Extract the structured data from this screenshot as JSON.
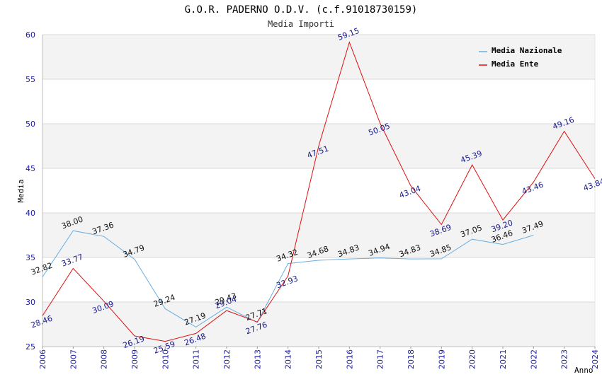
{
  "chart_data": {
    "type": "line",
    "title": "G.O.R. PADERNO O.D.V. (c.f.91018730159)",
    "subtitle": "Media Importi",
    "xlabel": "Anno",
    "ylabel": "Media",
    "ylim": [
      25,
      60
    ],
    "yticks": [
      "25",
      "30",
      "35",
      "40",
      "45",
      "50",
      "55",
      "60"
    ],
    "categories": [
      "2006",
      "2007",
      "2008",
      "2009",
      "2010",
      "2011",
      "2012",
      "2013",
      "2014",
      "2015",
      "2016",
      "2017",
      "2018",
      "2019",
      "2020",
      "2021",
      "2022",
      "2023",
      "2024"
    ],
    "legend_position": "top-right",
    "series": [
      {
        "name": "Media Nazionale",
        "color": "#6aaee0",
        "values": [
          32.82,
          38.0,
          37.36,
          34.79,
          29.24,
          27.19,
          29.43,
          27.71,
          34.32,
          34.68,
          34.83,
          34.94,
          34.83,
          34.85,
          37.05,
          36.46,
          37.49,
          null,
          null
        ],
        "labels": [
          "32.82",
          "38.00",
          "37.36",
          "34.79",
          "29.24",
          "27.19",
          "29.43",
          "27.71",
          "34.32",
          "34.68",
          "34.83",
          "34.94",
          "34.83",
          "34.85",
          "37.05",
          "36.46",
          "37.49",
          null,
          null
        ]
      },
      {
        "name": "Media Ente",
        "color": "#e01010",
        "values": [
          28.46,
          33.77,
          30.09,
          26.19,
          25.59,
          26.48,
          29.04,
          27.76,
          32.93,
          47.51,
          59.15,
          50.05,
          43.04,
          38.69,
          45.39,
          39.2,
          43.46,
          49.16,
          43.84
        ],
        "labels": [
          "28.46",
          "33.77",
          "30.09",
          "26.19",
          "25.59",
          "26.48",
          "29.04",
          "27.76",
          "32.93",
          "47.51",
          "59.15",
          "50.05",
          "43.04",
          "38.69",
          "45.39",
          "39.20",
          "43.46",
          "49.16",
          "43.84"
        ]
      }
    ]
  }
}
